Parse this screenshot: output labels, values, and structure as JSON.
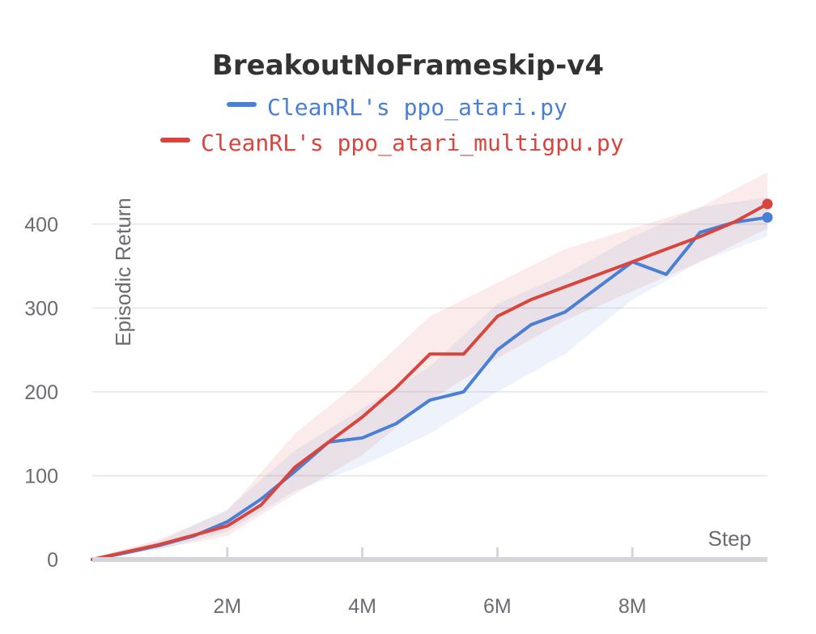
{
  "chart_data": {
    "type": "line",
    "title": "BreakoutNoFrameskip-v4",
    "xlabel": "Step",
    "ylabel": "Episodic Return",
    "xlim": [
      0,
      10000000
    ],
    "ylim": [
      0,
      450
    ],
    "x_ticks": [
      2000000,
      4000000,
      6000000,
      8000000
    ],
    "x_tick_labels": [
      "2M",
      "4M",
      "6M",
      "8M"
    ],
    "y_ticks": [
      0,
      100,
      200,
      300,
      400
    ],
    "y_tick_labels": [
      "0",
      "100",
      "200",
      "300",
      "400"
    ],
    "grid": true,
    "legend_position": "top",
    "series": [
      {
        "name": "CleanRL's ppo_atari.py",
        "color": "#4a7fd6",
        "points": [
          [
            0,
            0
          ],
          [
            500000,
            8
          ],
          [
            1000000,
            17
          ],
          [
            1500000,
            28
          ],
          [
            2000000,
            45
          ],
          [
            2500000,
            72
          ],
          [
            3000000,
            105
          ],
          [
            3500000,
            140
          ],
          [
            4000000,
            145
          ],
          [
            4500000,
            162
          ],
          [
            5000000,
            190
          ],
          [
            5500000,
            200
          ],
          [
            6000000,
            250
          ],
          [
            6500000,
            280
          ],
          [
            7000000,
            295
          ],
          [
            7500000,
            325
          ],
          [
            8000000,
            355
          ],
          [
            8500000,
            340
          ],
          [
            9000000,
            390
          ],
          [
            9500000,
            402
          ],
          [
            10000000,
            408
          ]
        ],
        "band": [
          [
            0,
            0,
            2
          ],
          [
            1000000,
            12,
            22
          ],
          [
            2000000,
            33,
            60
          ],
          [
            3000000,
            82,
            130
          ],
          [
            4000000,
            112,
            180
          ],
          [
            5000000,
            150,
            230
          ],
          [
            6000000,
            200,
            305
          ],
          [
            7000000,
            245,
            340
          ],
          [
            8000000,
            310,
            385
          ],
          [
            9000000,
            355,
            420
          ],
          [
            10000000,
            385,
            432
          ]
        ]
      },
      {
        "name": "CleanRL's ppo_atari_multigpu.py",
        "color": "#d9453d",
        "points": [
          [
            0,
            0
          ],
          [
            500000,
            9
          ],
          [
            1000000,
            18
          ],
          [
            1500000,
            29
          ],
          [
            2000000,
            40
          ],
          [
            2500000,
            65
          ],
          [
            3000000,
            110
          ],
          [
            3500000,
            140
          ],
          [
            4000000,
            170
          ],
          [
            4500000,
            205
          ],
          [
            5000000,
            245
          ],
          [
            5500000,
            245
          ],
          [
            6000000,
            290
          ],
          [
            6500000,
            310
          ],
          [
            7000000,
            325
          ],
          [
            7500000,
            340
          ],
          [
            8000000,
            355
          ],
          [
            8500000,
            370
          ],
          [
            9000000,
            385
          ],
          [
            9500000,
            402
          ],
          [
            10000000,
            424
          ]
        ],
        "band": [
          [
            0,
            0,
            2
          ],
          [
            1000000,
            13,
            24
          ],
          [
            2000000,
            28,
            58
          ],
          [
            3000000,
            78,
            150
          ],
          [
            4000000,
            125,
            215
          ],
          [
            5000000,
            190,
            290
          ],
          [
            6000000,
            240,
            330
          ],
          [
            7000000,
            285,
            370
          ],
          [
            8000000,
            320,
            395
          ],
          [
            9000000,
            355,
            420
          ],
          [
            10000000,
            395,
            462
          ]
        ]
      }
    ]
  }
}
